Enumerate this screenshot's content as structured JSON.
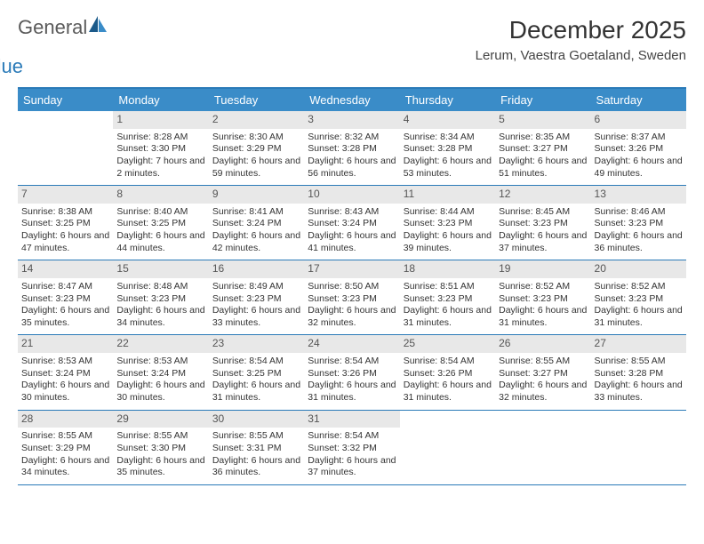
{
  "logo": {
    "text_general": "General",
    "text_blue": "Blue",
    "sail_color_dark": "#1b5a8a",
    "sail_color_light": "#3a8cc8"
  },
  "header": {
    "month_title": "December 2025",
    "location": "Lerum, Vaestra Goetaland, Sweden"
  },
  "colors": {
    "header_bg": "#3a8cc8",
    "header_text": "#ffffff",
    "rule": "#2a7ab8",
    "daynum_bg": "#e8e8e8",
    "body_text": "#333333"
  },
  "day_names": [
    "Sunday",
    "Monday",
    "Tuesday",
    "Wednesday",
    "Thursday",
    "Friday",
    "Saturday"
  ],
  "weeks": [
    [
      {
        "empty": true
      },
      {
        "num": "1",
        "sunrise": "Sunrise: 8:28 AM",
        "sunset": "Sunset: 3:30 PM",
        "daylight": "Daylight: 7 hours and 2 minutes."
      },
      {
        "num": "2",
        "sunrise": "Sunrise: 8:30 AM",
        "sunset": "Sunset: 3:29 PM",
        "daylight": "Daylight: 6 hours and 59 minutes."
      },
      {
        "num": "3",
        "sunrise": "Sunrise: 8:32 AM",
        "sunset": "Sunset: 3:28 PM",
        "daylight": "Daylight: 6 hours and 56 minutes."
      },
      {
        "num": "4",
        "sunrise": "Sunrise: 8:34 AM",
        "sunset": "Sunset: 3:28 PM",
        "daylight": "Daylight: 6 hours and 53 minutes."
      },
      {
        "num": "5",
        "sunrise": "Sunrise: 8:35 AM",
        "sunset": "Sunset: 3:27 PM",
        "daylight": "Daylight: 6 hours and 51 minutes."
      },
      {
        "num": "6",
        "sunrise": "Sunrise: 8:37 AM",
        "sunset": "Sunset: 3:26 PM",
        "daylight": "Daylight: 6 hours and 49 minutes."
      }
    ],
    [
      {
        "num": "7",
        "sunrise": "Sunrise: 8:38 AM",
        "sunset": "Sunset: 3:25 PM",
        "daylight": "Daylight: 6 hours and 47 minutes."
      },
      {
        "num": "8",
        "sunrise": "Sunrise: 8:40 AM",
        "sunset": "Sunset: 3:25 PM",
        "daylight": "Daylight: 6 hours and 44 minutes."
      },
      {
        "num": "9",
        "sunrise": "Sunrise: 8:41 AM",
        "sunset": "Sunset: 3:24 PM",
        "daylight": "Daylight: 6 hours and 42 minutes."
      },
      {
        "num": "10",
        "sunrise": "Sunrise: 8:43 AM",
        "sunset": "Sunset: 3:24 PM",
        "daylight": "Daylight: 6 hours and 41 minutes."
      },
      {
        "num": "11",
        "sunrise": "Sunrise: 8:44 AM",
        "sunset": "Sunset: 3:23 PM",
        "daylight": "Daylight: 6 hours and 39 minutes."
      },
      {
        "num": "12",
        "sunrise": "Sunrise: 8:45 AM",
        "sunset": "Sunset: 3:23 PM",
        "daylight": "Daylight: 6 hours and 37 minutes."
      },
      {
        "num": "13",
        "sunrise": "Sunrise: 8:46 AM",
        "sunset": "Sunset: 3:23 PM",
        "daylight": "Daylight: 6 hours and 36 minutes."
      }
    ],
    [
      {
        "num": "14",
        "sunrise": "Sunrise: 8:47 AM",
        "sunset": "Sunset: 3:23 PM",
        "daylight": "Daylight: 6 hours and 35 minutes."
      },
      {
        "num": "15",
        "sunrise": "Sunrise: 8:48 AM",
        "sunset": "Sunset: 3:23 PM",
        "daylight": "Daylight: 6 hours and 34 minutes."
      },
      {
        "num": "16",
        "sunrise": "Sunrise: 8:49 AM",
        "sunset": "Sunset: 3:23 PM",
        "daylight": "Daylight: 6 hours and 33 minutes."
      },
      {
        "num": "17",
        "sunrise": "Sunrise: 8:50 AM",
        "sunset": "Sunset: 3:23 PM",
        "daylight": "Daylight: 6 hours and 32 minutes."
      },
      {
        "num": "18",
        "sunrise": "Sunrise: 8:51 AM",
        "sunset": "Sunset: 3:23 PM",
        "daylight": "Daylight: 6 hours and 31 minutes."
      },
      {
        "num": "19",
        "sunrise": "Sunrise: 8:52 AM",
        "sunset": "Sunset: 3:23 PM",
        "daylight": "Daylight: 6 hours and 31 minutes."
      },
      {
        "num": "20",
        "sunrise": "Sunrise: 8:52 AM",
        "sunset": "Sunset: 3:23 PM",
        "daylight": "Daylight: 6 hours and 31 minutes."
      }
    ],
    [
      {
        "num": "21",
        "sunrise": "Sunrise: 8:53 AM",
        "sunset": "Sunset: 3:24 PM",
        "daylight": "Daylight: 6 hours and 30 minutes."
      },
      {
        "num": "22",
        "sunrise": "Sunrise: 8:53 AM",
        "sunset": "Sunset: 3:24 PM",
        "daylight": "Daylight: 6 hours and 30 minutes."
      },
      {
        "num": "23",
        "sunrise": "Sunrise: 8:54 AM",
        "sunset": "Sunset: 3:25 PM",
        "daylight": "Daylight: 6 hours and 31 minutes."
      },
      {
        "num": "24",
        "sunrise": "Sunrise: 8:54 AM",
        "sunset": "Sunset: 3:26 PM",
        "daylight": "Daylight: 6 hours and 31 minutes."
      },
      {
        "num": "25",
        "sunrise": "Sunrise: 8:54 AM",
        "sunset": "Sunset: 3:26 PM",
        "daylight": "Daylight: 6 hours and 31 minutes."
      },
      {
        "num": "26",
        "sunrise": "Sunrise: 8:55 AM",
        "sunset": "Sunset: 3:27 PM",
        "daylight": "Daylight: 6 hours and 32 minutes."
      },
      {
        "num": "27",
        "sunrise": "Sunrise: 8:55 AM",
        "sunset": "Sunset: 3:28 PM",
        "daylight": "Daylight: 6 hours and 33 minutes."
      }
    ],
    [
      {
        "num": "28",
        "sunrise": "Sunrise: 8:55 AM",
        "sunset": "Sunset: 3:29 PM",
        "daylight": "Daylight: 6 hours and 34 minutes."
      },
      {
        "num": "29",
        "sunrise": "Sunrise: 8:55 AM",
        "sunset": "Sunset: 3:30 PM",
        "daylight": "Daylight: 6 hours and 35 minutes."
      },
      {
        "num": "30",
        "sunrise": "Sunrise: 8:55 AM",
        "sunset": "Sunset: 3:31 PM",
        "daylight": "Daylight: 6 hours and 36 minutes."
      },
      {
        "num": "31",
        "sunrise": "Sunrise: 8:54 AM",
        "sunset": "Sunset: 3:32 PM",
        "daylight": "Daylight: 6 hours and 37 minutes."
      },
      {
        "empty": true
      },
      {
        "empty": true
      },
      {
        "empty": true
      }
    ]
  ]
}
